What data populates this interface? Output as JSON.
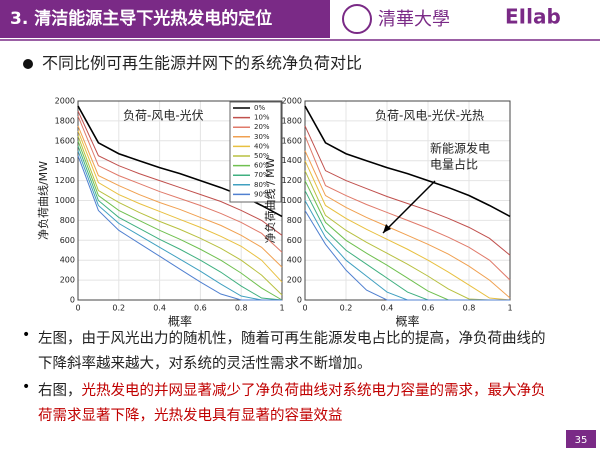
{
  "header": {
    "title": "3. 清洁能源主导下光热发电的定位",
    "logo_text": "清華大學",
    "lab": "EIlab"
  },
  "bullet": "不同比例可再生能源并网下的系统净负荷对比",
  "chart_data": [
    {
      "type": "line",
      "title": "负荷-风电-光伏",
      "xlabel": "概率",
      "ylabel": "净负荷曲线/MW",
      "x": [
        0,
        0.1,
        0.2,
        0.3,
        0.4,
        0.5,
        0.6,
        0.7,
        0.8,
        0.9,
        1
      ],
      "xlim": [
        0,
        1
      ],
      "xticks": [
        0,
        0.2,
        0.4,
        0.6,
        0.8,
        1
      ],
      "ylim": [
        0,
        2000
      ],
      "yticks": [
        0,
        200,
        400,
        600,
        800,
        1000,
        1200,
        1400,
        1600,
        1800,
        2000
      ],
      "legend": "upper right",
      "series": [
        {
          "name": "0%",
          "color": "#000000",
          "values": [
            1950,
            1580,
            1470,
            1400,
            1330,
            1270,
            1200,
            1130,
            1050,
            950,
            840
          ]
        },
        {
          "name": "10%",
          "color": "#c0504d",
          "values": [
            1900,
            1450,
            1350,
            1270,
            1200,
            1130,
            1060,
            990,
            900,
            800,
            650
          ]
        },
        {
          "name": "20%",
          "color": "#e07a6a",
          "values": [
            1850,
            1350,
            1250,
            1170,
            1090,
            1020,
            950,
            870,
            780,
            670,
            480
          ]
        },
        {
          "name": "30%",
          "color": "#f0a050",
          "values": [
            1750,
            1250,
            1150,
            1060,
            980,
            910,
            830,
            750,
            650,
            530,
            330
          ]
        },
        {
          "name": "40%",
          "color": "#e8c040",
          "values": [
            1700,
            1180,
            1060,
            970,
            890,
            810,
            730,
            640,
            540,
            400,
            180
          ]
        },
        {
          "name": "50%",
          "color": "#b8c040",
          "values": [
            1650,
            1100,
            980,
            880,
            790,
            710,
            620,
            520,
            400,
            250,
            50
          ]
        },
        {
          "name": "60%",
          "color": "#70c050",
          "values": [
            1600,
            1050,
            900,
            800,
            700,
            610,
            510,
            400,
            270,
            120,
            0
          ]
        },
        {
          "name": "70%",
          "color": "#40b080",
          "values": [
            1550,
            1000,
            830,
            720,
            610,
            510,
            400,
            280,
            140,
            20,
            0
          ]
        },
        {
          "name": "80%",
          "color": "#40a0c0",
          "values": [
            1500,
            950,
            770,
            650,
            530,
            410,
            290,
            160,
            40,
            0,
            0
          ]
        },
        {
          "name": "90%",
          "color": "#5080d0",
          "values": [
            1450,
            900,
            700,
            570,
            440,
            310,
            180,
            60,
            0,
            0,
            0
          ]
        }
      ]
    },
    {
      "type": "line",
      "title": "负荷-风电-光伏-光热",
      "xlabel": "概率",
      "ylabel": "净负荷曲线 / MW",
      "annotation": [
        "新能源发电",
        "电量占比"
      ],
      "x": [
        0,
        0.1,
        0.2,
        0.3,
        0.4,
        0.5,
        0.6,
        0.7,
        0.8,
        0.9,
        1
      ],
      "xlim": [
        0,
        1
      ],
      "xticks": [
        0,
        0.2,
        0.4,
        0.6,
        0.8,
        1
      ],
      "ylim": [
        0,
        2000
      ],
      "yticks": [
        0,
        200,
        400,
        600,
        800,
        1000,
        1200,
        1400,
        1600,
        1800,
        2000
      ],
      "series": [
        {
          "color": "#000000",
          "values": [
            1950,
            1580,
            1470,
            1400,
            1330,
            1270,
            1200,
            1130,
            1050,
            950,
            840
          ]
        },
        {
          "color": "#c0504d",
          "values": [
            1750,
            1300,
            1200,
            1120,
            1040,
            970,
            900,
            820,
            730,
            620,
            450
          ]
        },
        {
          "color": "#e07a6a",
          "values": [
            1650,
            1150,
            1050,
            960,
            880,
            800,
            720,
            630,
            530,
            400,
            200
          ]
        },
        {
          "color": "#f0a050",
          "values": [
            1500,
            1050,
            930,
            830,
            740,
            650,
            560,
            460,
            340,
            200,
            20
          ]
        },
        {
          "color": "#e8c040",
          "values": [
            1400,
            950,
            820,
            710,
            610,
            510,
            400,
            280,
            150,
            20,
            0
          ]
        },
        {
          "color": "#b8c040",
          "values": [
            1300,
            850,
            700,
            580,
            470,
            360,
            240,
            110,
            10,
            0,
            0
          ]
        },
        {
          "color": "#70c050",
          "values": [
            1200,
            780,
            600,
            470,
            350,
            220,
            90,
            0,
            0,
            0,
            0
          ]
        },
        {
          "color": "#40b080",
          "values": [
            1100,
            700,
            500,
            360,
            220,
            80,
            0,
            0,
            0,
            0,
            0
          ]
        },
        {
          "color": "#40a0c0",
          "values": [
            1000,
            630,
            400,
            240,
            80,
            0,
            0,
            0,
            0,
            0,
            0
          ]
        },
        {
          "color": "#5080d0",
          "values": [
            900,
            560,
            300,
            100,
            0,
            0,
            0,
            0,
            0,
            0,
            0
          ]
        }
      ]
    }
  ],
  "notes": [
    {
      "text": "左图，由于风光出力的随机性，随着可再生能源发电占比的提高，净负荷曲线的下降斜率越来越大，对系统的灵活性需求不断增加。"
    },
    {
      "lead": "右图，",
      "highlight": "光热发电的并网显著减少了净负荷曲线对系统电力容量的需求，最大净负荷需求显著下降，光热发电具有显著的容量效益"
    }
  ],
  "page": "35"
}
